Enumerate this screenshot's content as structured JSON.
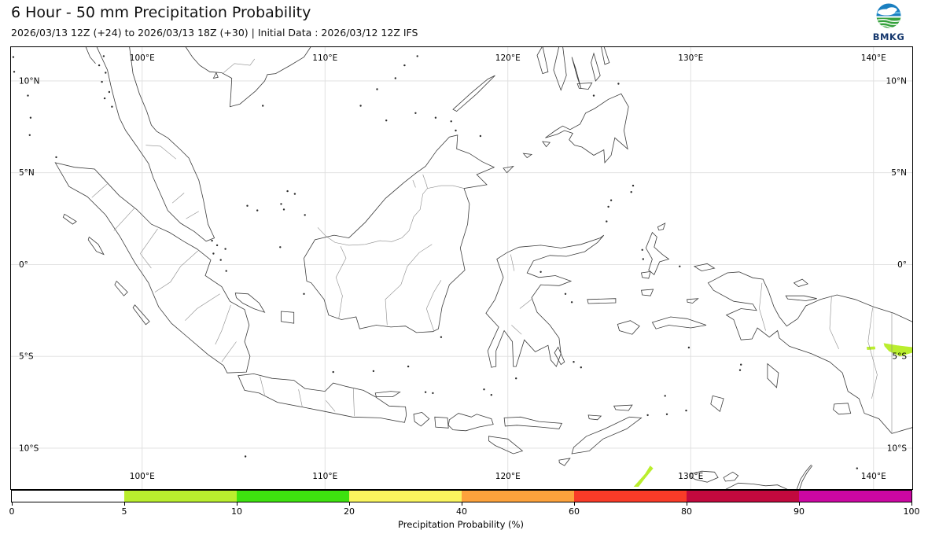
{
  "header": {
    "title": "6 Hour - 50 mm Precipitation Probability",
    "subtitle": "2026/03/13 12Z (+24) to 2026/03/13 18Z (+30) | Initial Data : 2026/03/12 12Z IFS",
    "logo_text": "BMKG"
  },
  "map": {
    "lat_labels": [
      "10°N",
      "5°N",
      "0°",
      "5°S",
      "10°S"
    ],
    "lat_values": [
      10,
      5,
      0,
      -5,
      -10
    ],
    "lon_labels": [
      "100°E",
      "110°E",
      "120°E",
      "130°E",
      "140°E"
    ],
    "lon_values": [
      100,
      110,
      120,
      130,
      140
    ],
    "colors": {
      "coastline": "#3c3c3c",
      "admin_border": "#8a8a8a",
      "gridline": "#dedede",
      "background": "#ffffff"
    }
  },
  "colorbar": {
    "label": "Precipitation Probability (%)",
    "ticks": [
      "0",
      "5",
      "10",
      "20",
      "40",
      "60",
      "80",
      "90",
      "100"
    ],
    "colors": [
      "#ffffff",
      "#baee2e",
      "#3ee20f",
      "#faf55e",
      "#fda23c",
      "#f93b28",
      "#c2093e",
      "#cb07a2"
    ]
  },
  "precip_patches": {
    "value_range": "5-10 %",
    "color": "#baee2e",
    "polygons_lonlat": [
      [
        [
          126.88,
          -12.1
        ],
        [
          127.5,
          -11.4
        ],
        [
          127.78,
          -10.95
        ],
        [
          127.95,
          -11.1
        ],
        [
          127.45,
          -11.7
        ],
        [
          127.15,
          -12.1
        ]
      ],
      [
        [
          140.55,
          -4.28
        ],
        [
          141.3,
          -4.4
        ],
        [
          142.12,
          -4.5
        ],
        [
          142.12,
          -4.8
        ],
        [
          141.45,
          -5.0
        ],
        [
          140.85,
          -4.72
        ],
        [
          140.6,
          -4.45
        ]
      ],
      [
        [
          139.62,
          -4.48
        ],
        [
          140.08,
          -4.46
        ],
        [
          140.1,
          -4.62
        ],
        [
          139.65,
          -4.65
        ]
      ]
    ]
  },
  "logo_colors": {
    "blue": "#1a7fc0",
    "green": "#36a23d",
    "text_navy": "#16386e"
  }
}
